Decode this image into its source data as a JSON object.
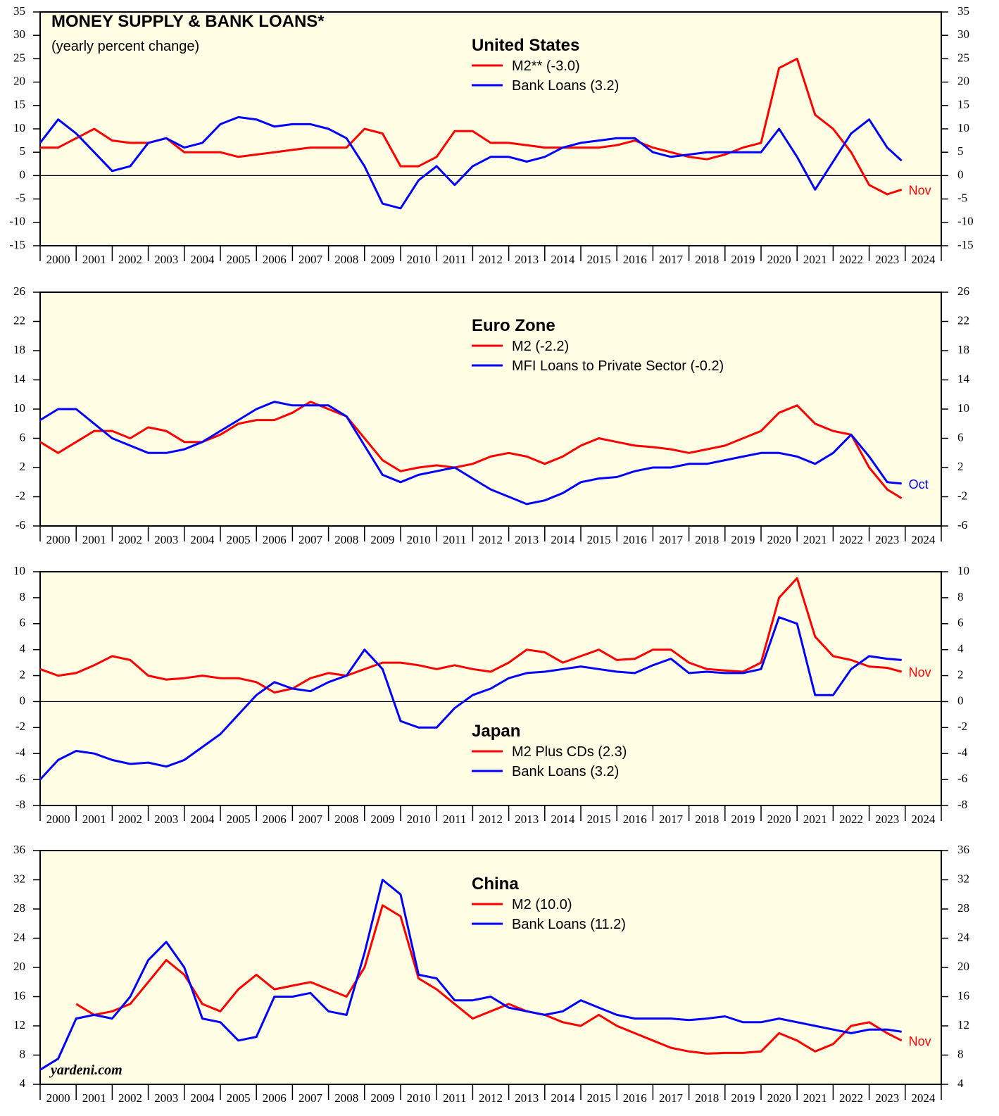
{
  "chart_data": [
    {
      "type": "line",
      "figure_title": "MONEY SUPPLY & BANK LOANS*",
      "figure_subtitle": "(yearly percent change)",
      "title": "United States",
      "x": [
        2000,
        2000.5,
        2001,
        2001.5,
        2002,
        2002.5,
        2003,
        2003.5,
        2004,
        2004.5,
        2005,
        2005.5,
        2006,
        2006.5,
        2007,
        2007.5,
        2008,
        2008.5,
        2009,
        2009.5,
        2010,
        2010.5,
        2011,
        2011.5,
        2012,
        2012.5,
        2013,
        2013.5,
        2014,
        2014.5,
        2015,
        2015.5,
        2016,
        2016.5,
        2017,
        2017.5,
        2018,
        2018.5,
        2019,
        2019.5,
        2020,
        2020.5,
        2021,
        2021.5,
        2022,
        2022.5,
        2023,
        2023.5,
        2023.9
      ],
      "xlim": [
        2000,
        2025
      ],
      "xticks": [
        2000,
        2001,
        2002,
        2003,
        2004,
        2005,
        2006,
        2007,
        2008,
        2009,
        2010,
        2011,
        2012,
        2013,
        2014,
        2015,
        2016,
        2017,
        2018,
        2019,
        2020,
        2021,
        2022,
        2023,
        2024
      ],
      "ylim": [
        -15,
        35
      ],
      "yticks": [
        -15,
        -10,
        -5,
        0,
        5,
        10,
        15,
        20,
        25,
        30,
        35
      ],
      "legend_loc": "upper center",
      "annotation": {
        "text": "Nov",
        "color": "#ff0000"
      },
      "series": [
        {
          "name": "M2** (-3.0)",
          "color": "#ff0000",
          "values": [
            6,
            6,
            8,
            10,
            7.5,
            7,
            7,
            8,
            5,
            5,
            5,
            4,
            4.5,
            5,
            5.5,
            6,
            6,
            6,
            10,
            9,
            2,
            2,
            4,
            9.5,
            9.5,
            7,
            7,
            6.5,
            6,
            6,
            6,
            6,
            6.5,
            7.5,
            6,
            5,
            4,
            3.5,
            4.5,
            6,
            7,
            23,
            25,
            13,
            10,
            5,
            -2,
            -4,
            -3
          ]
        },
        {
          "name": "Bank Loans (3.2)",
          "color": "#0000ff",
          "values": [
            7,
            12,
            9,
            5,
            1,
            2,
            7,
            8,
            6,
            7,
            11,
            12.5,
            12,
            10.5,
            11,
            11,
            10,
            8,
            2,
            -6,
            -7,
            -1,
            2,
            -2,
            2,
            4,
            4,
            3,
            4,
            6,
            7,
            7.5,
            8,
            8,
            5,
            4,
            4.5,
            5,
            5,
            5,
            5,
            10,
            4,
            -3,
            3,
            9,
            12,
            6,
            3.2
          ]
        }
      ]
    },
    {
      "type": "line",
      "title": "Euro Zone",
      "x": [
        2000,
        2000.5,
        2001,
        2001.5,
        2002,
        2002.5,
        2003,
        2003.5,
        2004,
        2004.5,
        2005,
        2005.5,
        2006,
        2006.5,
        2007,
        2007.5,
        2008,
        2008.5,
        2009,
        2009.5,
        2010,
        2010.5,
        2011,
        2011.5,
        2012,
        2012.5,
        2013,
        2013.5,
        2014,
        2014.5,
        2015,
        2015.5,
        2016,
        2016.5,
        2017,
        2017.5,
        2018,
        2018.5,
        2019,
        2019.5,
        2020,
        2020.5,
        2021,
        2021.5,
        2022,
        2022.5,
        2023,
        2023.5,
        2023.9
      ],
      "xlim": [
        2000,
        2025
      ],
      "xticks": [
        2000,
        2001,
        2002,
        2003,
        2004,
        2005,
        2006,
        2007,
        2008,
        2009,
        2010,
        2011,
        2012,
        2013,
        2014,
        2015,
        2016,
        2017,
        2018,
        2019,
        2020,
        2021,
        2022,
        2023,
        2024
      ],
      "ylim": [
        -6,
        26
      ],
      "yticks": [
        -6,
        -2,
        2,
        6,
        10,
        14,
        18,
        22,
        26
      ],
      "legend_loc": "upper center",
      "annotation": {
        "text": "Oct",
        "color": "#0000ff"
      },
      "series": [
        {
          "name": "M2 (-2.2)",
          "color": "#ff0000",
          "values": [
            5.5,
            4,
            5.5,
            7,
            7,
            6,
            7.5,
            7,
            5.5,
            5.5,
            6.5,
            8,
            8.5,
            8.5,
            9.5,
            11,
            10,
            9,
            6,
            3,
            1.5,
            2,
            2.3,
            2,
            2.5,
            3.5,
            4,
            3.5,
            2.5,
            3.5,
            5,
            6,
            5.5,
            5,
            4.8,
            4.5,
            4,
            4.5,
            5,
            6,
            7,
            9.5,
            10.5,
            8,
            7,
            6.5,
            2,
            -1,
            -2.2
          ]
        },
        {
          "name": "MFI Loans to Private Sector (-0.2)",
          "color": "#0000ff",
          "values": [
            8.5,
            10,
            10,
            8,
            6,
            5,
            4,
            4,
            4.5,
            5.5,
            7,
            8.5,
            10,
            11,
            10.5,
            10.5,
            10.5,
            9,
            5,
            1,
            0,
            1,
            1.5,
            2,
            0.5,
            -1,
            -2,
            -3,
            -2.5,
            -1.5,
            0,
            0.5,
            0.7,
            1.5,
            2,
            2,
            2.5,
            2.5,
            3,
            3.5,
            4,
            4,
            3.5,
            2.5,
            4,
            6.5,
            3.5,
            0,
            -0.2
          ]
        }
      ]
    },
    {
      "type": "line",
      "title": "Japan",
      "x": [
        2000,
        2000.5,
        2001,
        2001.5,
        2002,
        2002.5,
        2003,
        2003.5,
        2004,
        2004.5,
        2005,
        2005.5,
        2006,
        2006.5,
        2007,
        2007.5,
        2008,
        2008.5,
        2009,
        2009.5,
        2010,
        2010.5,
        2011,
        2011.5,
        2012,
        2012.5,
        2013,
        2013.5,
        2014,
        2014.5,
        2015,
        2015.5,
        2016,
        2016.5,
        2017,
        2017.5,
        2018,
        2018.5,
        2019,
        2019.5,
        2020,
        2020.5,
        2021,
        2021.5,
        2022,
        2022.5,
        2023,
        2023.5,
        2023.9
      ],
      "xlim": [
        2000,
        2025
      ],
      "xticks": [
        2000,
        2001,
        2002,
        2003,
        2004,
        2005,
        2006,
        2007,
        2008,
        2009,
        2010,
        2011,
        2012,
        2013,
        2014,
        2015,
        2016,
        2017,
        2018,
        2019,
        2020,
        2021,
        2022,
        2023,
        2024
      ],
      "ylim": [
        -8,
        10
      ],
      "yticks": [
        -8,
        -6,
        -4,
        -2,
        0,
        2,
        4,
        6,
        8,
        10
      ],
      "legend_loc": "lower center",
      "annotation": {
        "text": "Nov",
        "color": "#ff0000"
      },
      "series": [
        {
          "name": "M2 Plus CDs (2.3)",
          "color": "#ff0000",
          "values": [
            2.5,
            2,
            2.2,
            2.8,
            3.5,
            3.2,
            2,
            1.7,
            1.8,
            2,
            1.8,
            1.8,
            1.5,
            0.7,
            1,
            1.8,
            2.2,
            2,
            2.5,
            3,
            3,
            2.8,
            2.5,
            2.8,
            2.5,
            2.3,
            3,
            4,
            3.8,
            3,
            3.5,
            4,
            3.2,
            3.3,
            4,
            4,
            3,
            2.5,
            2.4,
            2.3,
            3,
            8,
            9.5,
            5,
            3.5,
            3.2,
            2.7,
            2.6,
            2.3
          ]
        },
        {
          "name": "Bank Loans (3.2)",
          "color": "#0000ff",
          "values": [
            -6,
            -4.5,
            -3.8,
            -4,
            -4.5,
            -4.8,
            -4.7,
            -5,
            -4.5,
            -3.5,
            -2.5,
            -1,
            0.5,
            1.5,
            1,
            0.8,
            1.5,
            2,
            4,
            2.5,
            -1.5,
            -2,
            -2,
            -0.5,
            0.5,
            1,
            1.8,
            2.2,
            2.3,
            2.5,
            2.7,
            2.5,
            2.3,
            2.2,
            2.8,
            3.3,
            2.2,
            2.3,
            2.2,
            2.2,
            2.5,
            6.5,
            6,
            0.5,
            0.5,
            2.5,
            3.5,
            3.3,
            3.2
          ]
        }
      ]
    },
    {
      "type": "line",
      "title": "China",
      "source": "yardeni.com",
      "x": [
        2000,
        2000.5,
        2001,
        2001.5,
        2002,
        2002.5,
        2003,
        2003.5,
        2004,
        2004.5,
        2005,
        2005.5,
        2006,
        2006.5,
        2007,
        2007.5,
        2008,
        2008.5,
        2009,
        2009.5,
        2010,
        2010.5,
        2011,
        2011.5,
        2012,
        2012.5,
        2013,
        2013.5,
        2014,
        2014.5,
        2015,
        2015.5,
        2016,
        2016.5,
        2017,
        2017.5,
        2018,
        2018.5,
        2019,
        2019.5,
        2020,
        2020.5,
        2021,
        2021.5,
        2022,
        2022.5,
        2023,
        2023.5,
        2023.9
      ],
      "xlim": [
        2000,
        2025
      ],
      "xticks": [
        2000,
        2001,
        2002,
        2003,
        2004,
        2005,
        2006,
        2007,
        2008,
        2009,
        2010,
        2011,
        2012,
        2013,
        2014,
        2015,
        2016,
        2017,
        2018,
        2019,
        2020,
        2021,
        2022,
        2023,
        2024
      ],
      "ylim": [
        4,
        36
      ],
      "yticks": [
        4,
        8,
        12,
        16,
        20,
        24,
        28,
        32,
        36
      ],
      "legend_loc": "upper center",
      "annotation": {
        "text": "Nov",
        "color": "#ff0000"
      },
      "series": [
        {
          "name": "M2 (10.0)",
          "color": "#ff0000",
          "values": [
            null,
            null,
            15,
            13.5,
            14,
            15,
            18,
            21,
            19,
            15,
            14,
            17,
            19,
            17,
            17.5,
            18,
            17,
            16,
            20,
            28.5,
            27,
            18.5,
            17,
            15,
            13,
            14,
            15,
            14,
            13.5,
            12.5,
            12,
            13.5,
            12,
            11,
            10,
            9,
            8.5,
            8.2,
            8.3,
            8.3,
            8.5,
            11,
            10,
            8.5,
            9.5,
            12,
            12.5,
            11,
            10
          ]
        },
        {
          "name": "Bank Loans (11.2)",
          "color": "#0000ff",
          "values": [
            6,
            7.5,
            13,
            13.5,
            13,
            16,
            21,
            23.5,
            20,
            13,
            12.5,
            10,
            10.5,
            16,
            16,
            16.5,
            14,
            13.5,
            22,
            32,
            30,
            19,
            18.5,
            15.5,
            15.5,
            16,
            14.5,
            14,
            13.5,
            14,
            15.5,
            14.5,
            13.5,
            13,
            13,
            13,
            12.8,
            13,
            13.3,
            12.5,
            12.5,
            13,
            12.5,
            12,
            11.5,
            11,
            11.5,
            11.5,
            11.2
          ]
        }
      ]
    }
  ]
}
